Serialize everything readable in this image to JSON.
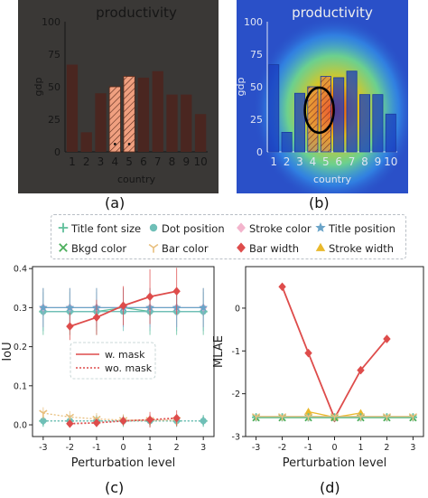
{
  "captions": {
    "a": "(a)",
    "b": "(b)",
    "c": "(c)",
    "d": "(d)"
  },
  "legend": {
    "items": [
      {
        "label": "Title font size",
        "marker": "plus",
        "color": "#5fbf9a"
      },
      {
        "label": "Dot position",
        "marker": "circle",
        "color": "#6fbfb7"
      },
      {
        "label": "Stroke color",
        "marker": "diamond",
        "color": "#f3b4cc"
      },
      {
        "label": "Title position",
        "marker": "star",
        "color": "#6aa4c8"
      },
      {
        "label": "Bkgd color",
        "marker": "x",
        "color": "#4cae5c"
      },
      {
        "label": "Bar color",
        "marker": "tri_down",
        "color": "#e8bf7d"
      },
      {
        "label": "Bar width",
        "marker": "diamond",
        "color": "#de4c4b"
      },
      {
        "label": "Stroke width",
        "marker": "triangle",
        "color": "#e9b92c"
      }
    ]
  },
  "chart_data": [
    {
      "id": "a",
      "type": "bar",
      "title": "productivity",
      "xlabel": "country",
      "ylabel": "gdp",
      "categories": [
        "1",
        "2",
        "3",
        "4",
        "5",
        "6",
        "7",
        "8",
        "9",
        "10"
      ],
      "values": [
        67,
        15,
        45,
        50,
        58,
        57,
        62,
        44,
        44,
        29
      ],
      "highlighted": [
        "4",
        "5"
      ],
      "ylim": [
        0,
        100
      ],
      "yticks": [
        0,
        25,
        50,
        75,
        100
      ],
      "background": "#3a3836",
      "bar_color": "#4a2620",
      "highlight_color": "#f0a080"
    },
    {
      "id": "b",
      "type": "bar",
      "title": "productivity",
      "xlabel": "country",
      "ylabel": "gdp",
      "categories": [
        "1",
        "2",
        "3",
        "4",
        "5",
        "6",
        "7",
        "8",
        "9",
        "10"
      ],
      "values": [
        67,
        15,
        45,
        50,
        58,
        57,
        62,
        44,
        44,
        29
      ],
      "highlighted": [
        "4",
        "5"
      ],
      "ylim": [
        0,
        100
      ],
      "yticks": [
        0,
        25,
        50,
        75,
        100
      ],
      "background": "#2a50c8",
      "bar_color": "#1f3fb0",
      "overlay": "attention heatmap centered on bars 4-5"
    },
    {
      "id": "c",
      "type": "line",
      "xlabel": "Perturbation level",
      "ylabel": "IoU",
      "x": [
        -3,
        -2,
        -1,
        0,
        1,
        2,
        3
      ],
      "xlim": [
        -3.4,
        3.4
      ],
      "ylim": [
        -0.03,
        0.405
      ],
      "yticks": [
        "0.0",
        "0.1",
        "0.2",
        "0.3",
        "0.4"
      ],
      "series": [
        {
          "name": "Title font size",
          "color": "#5fbf9a",
          "marker": "plus",
          "x": [
            -3,
            -2,
            -1,
            0,
            1,
            2,
            3
          ],
          "values": [
            0.29,
            0.29,
            0.29,
            0.3,
            0.29,
            0.29,
            0.29
          ],
          "err": [
            0.06,
            0.06,
            0.06,
            0.05,
            0.06,
            0.06,
            0.06
          ],
          "style": "solid"
        },
        {
          "name": "Dot position",
          "color": "#6fbfb7",
          "marker": "circle",
          "x": [
            -3,
            -2,
            -1,
            0,
            1,
            2,
            3
          ],
          "values": [
            0.29,
            0.29,
            0.29,
            0.29,
            0.29,
            0.29,
            0.29
          ],
          "err": [
            0.05,
            0.05,
            0.05,
            0.05,
            0.05,
            0.05,
            0.05
          ],
          "style": "solid"
        },
        {
          "name": "Stroke color",
          "color": "#f3b4cc",
          "marker": "diamond",
          "x": [
            -3,
            -2,
            -1,
            0,
            1,
            2,
            3
          ],
          "values": [
            0.3,
            0.3,
            0.3,
            0.3,
            0.3,
            0.3,
            0.3
          ],
          "err": [
            0.05,
            0.05,
            0.05,
            0.05,
            0.05,
            0.05,
            0.05
          ],
          "style": "solid"
        },
        {
          "name": "Title position",
          "color": "#6aa4c8",
          "marker": "star",
          "x": [
            -3,
            -2,
            -1,
            0,
            1,
            2,
            3
          ],
          "values": [
            0.3,
            0.3,
            0.3,
            0.3,
            0.3,
            0.3,
            0.3
          ],
          "err": [
            0.05,
            0.05,
            0.05,
            0.05,
            0.05,
            0.05,
            0.05
          ],
          "style": "solid"
        },
        {
          "name": "Bar width",
          "color": "#de4c4b",
          "marker": "diamond",
          "x": [
            -2,
            -1,
            0,
            1,
            2
          ],
          "values": [
            0.252,
            0.275,
            0.305,
            0.328,
            0.342
          ],
          "err": [
            0.035,
            0.045,
            0.05,
            0.07,
            0.06
          ],
          "style": "solid"
        },
        {
          "name": "Title font size",
          "color": "#5fbf9a",
          "marker": "plus",
          "x": [
            -3,
            -2,
            -1,
            0,
            1,
            2,
            3
          ],
          "values": [
            0.01,
            0.01,
            0.01,
            0.01,
            0.01,
            0.01,
            0.01
          ],
          "err": [
            0.015,
            0.015,
            0.015,
            0.015,
            0.015,
            0.015,
            0.015
          ],
          "style": "dotted"
        },
        {
          "name": "Dot position",
          "color": "#6fbfb7",
          "marker": "circle",
          "x": [
            -3,
            -2,
            -1,
            0,
            1,
            2,
            3
          ],
          "values": [
            0.01,
            0.01,
            0.01,
            0.01,
            0.01,
            0.01,
            0.01
          ],
          "err": [
            0.015,
            0.015,
            0.015,
            0.015,
            0.015,
            0.015,
            0.015
          ],
          "style": "dotted"
        },
        {
          "name": "Bar color",
          "color": "#e8bf7d",
          "marker": "tri_down",
          "x": [
            -3,
            -2,
            -1,
            0,
            1,
            2
          ],
          "values": [
            0.03,
            0.02,
            0.015,
            0.012,
            0.012,
            0.012
          ],
          "err": [
            0.015,
            0.015,
            0.015,
            0.015,
            0.015,
            0.015
          ],
          "style": "dotted"
        },
        {
          "name": "Bar width",
          "color": "#de4c4b",
          "marker": "diamond",
          "x": [
            -2,
            -1,
            0,
            1,
            2
          ],
          "values": [
            0.003,
            0.005,
            0.01,
            0.013,
            0.017
          ],
          "err": [
            0.01,
            0.01,
            0.012,
            0.02,
            0.02
          ],
          "style": "dotted"
        }
      ],
      "inner_legend": [
        {
          "label": "w. mask",
          "style": "solid",
          "color": "#de4c4b"
        },
        {
          "label": "wo. mask",
          "style": "dotted",
          "color": "#de4c4b"
        }
      ]
    },
    {
      "id": "d",
      "type": "line",
      "xlabel": "Perturbation level",
      "ylabel": "MLAE",
      "x": [
        -3,
        -2,
        -1,
        0,
        1,
        2,
        3
      ],
      "xlim": [
        -3.4,
        3.4
      ],
      "ylim": [
        -3,
        0.97
      ],
      "yticks": [
        "-3",
        "-2",
        "-1",
        "0"
      ],
      "series": [
        {
          "name": "Bar width",
          "color": "#de4c4b",
          "marker": "diamond",
          "x": [
            -2,
            -1,
            0,
            1,
            2
          ],
          "values": [
            0.5,
            -1.05,
            -2.57,
            -1.45,
            -0.72
          ]
        },
        {
          "name": "Stroke width",
          "color": "#e9b92c",
          "marker": "triangle",
          "x": [
            -1,
            0,
            1
          ],
          "values": [
            -2.42,
            -2.55,
            -2.45
          ]
        },
        {
          "name": "Bkgd color",
          "color": "#4cae5c",
          "marker": "x",
          "x": [
            -3,
            -2,
            -1,
            0,
            1,
            2,
            3
          ],
          "values": [
            -2.56,
            -2.56,
            -2.56,
            -2.56,
            -2.56,
            -2.56,
            -2.56
          ]
        },
        {
          "name": "Title font size",
          "color": "#5fbf9a",
          "marker": "plus",
          "x": [
            -3,
            -2,
            -1,
            0,
            1,
            2,
            3
          ],
          "values": [
            -2.55,
            -2.55,
            -2.55,
            -2.55,
            -2.55,
            -2.55,
            -2.55
          ]
        },
        {
          "name": "Bar color",
          "color": "#e8bf7d",
          "marker": "tri_down",
          "x": [
            -3,
            -2,
            -1,
            0,
            1,
            2,
            3
          ],
          "values": [
            -2.53,
            -2.53,
            -2.53,
            -2.53,
            -2.53,
            -2.53,
            -2.53
          ]
        }
      ]
    }
  ]
}
